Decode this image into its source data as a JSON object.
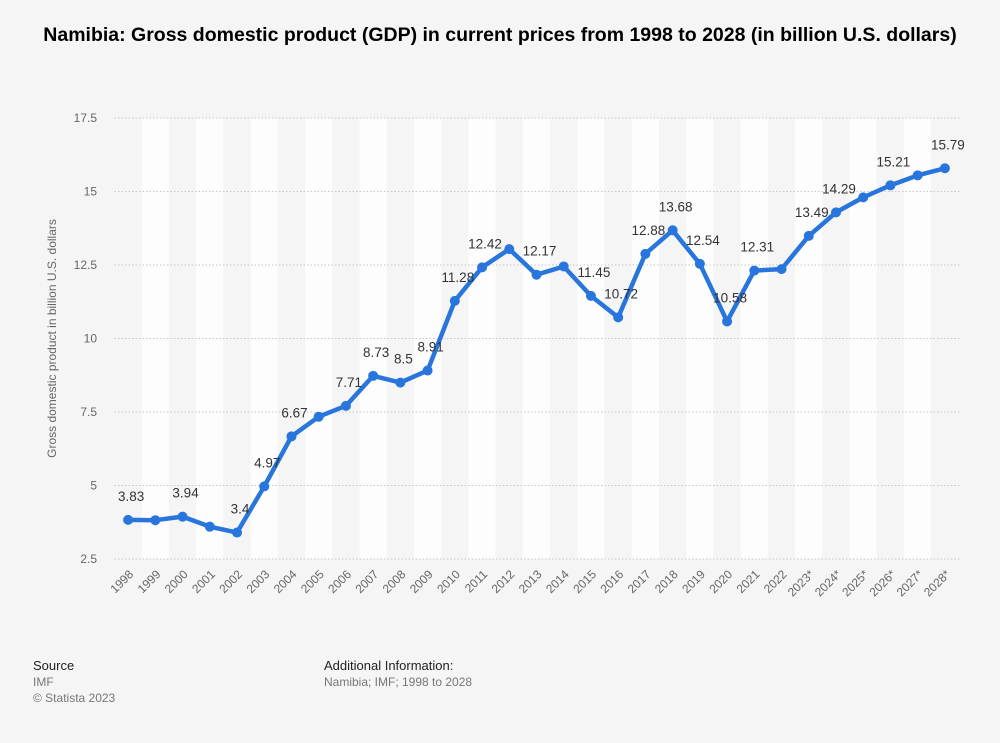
{
  "chart_data": {
    "type": "line",
    "title": "Namibia: Gross domestic product (GDP) in current prices from 1998 to 2028 (in billion U.S. dollars)",
    "xlabel": "",
    "ylabel": "Gross domestic product in billion U.S. dollars",
    "ylim": [
      2.5,
      17.5
    ],
    "yticks": [
      "2.5",
      "5",
      "7.5",
      "10",
      "12.5",
      "15",
      "17.5"
    ],
    "ytick_values": [
      2.5,
      5,
      7.5,
      10,
      12.5,
      15,
      17.5
    ],
    "grid": true,
    "color": "#2876dd",
    "categories": [
      "1998",
      "1999",
      "2000",
      "2001",
      "2002",
      "2003",
      "2004",
      "2005",
      "2006",
      "2007",
      "2008",
      "2009",
      "2010",
      "2011",
      "2012",
      "2013",
      "2014",
      "2015",
      "2016",
      "2017",
      "2018",
      "2019",
      "2020",
      "2021",
      "2022",
      "2023*",
      "2024*",
      "2025*",
      "2026*",
      "2027*",
      "2028*"
    ],
    "values": [
      3.83,
      3.82,
      3.94,
      3.6,
      3.4,
      4.97,
      6.67,
      7.34,
      7.71,
      8.73,
      8.5,
      8.91,
      11.28,
      12.42,
      13.04,
      12.17,
      12.45,
      11.45,
      10.72,
      12.88,
      13.68,
      12.54,
      10.58,
      12.31,
      12.36,
      13.49,
      14.29,
      14.8,
      15.21,
      15.55,
      15.79
    ],
    "data_labels": [
      "3.83",
      "",
      "3.94",
      "",
      "3.4",
      "4.97",
      "6.67",
      "",
      "7.71",
      "8.73",
      "8.5",
      "8.91",
      "11.28",
      "12.42",
      "",
      "12.17",
      "",
      "11.45",
      "10.72",
      "12.88",
      "13.68",
      "12.54",
      "10.58",
      "12.31",
      "",
      "13.49",
      "14.29",
      "",
      "15.21",
      "",
      "15.79"
    ]
  },
  "footer": {
    "source_heading": "Source",
    "source_lines": [
      "IMF",
      "© Statista 2023"
    ],
    "info_heading": "Additional Information:",
    "info_text": "Namibia; IMF; 1998 to 2028"
  }
}
